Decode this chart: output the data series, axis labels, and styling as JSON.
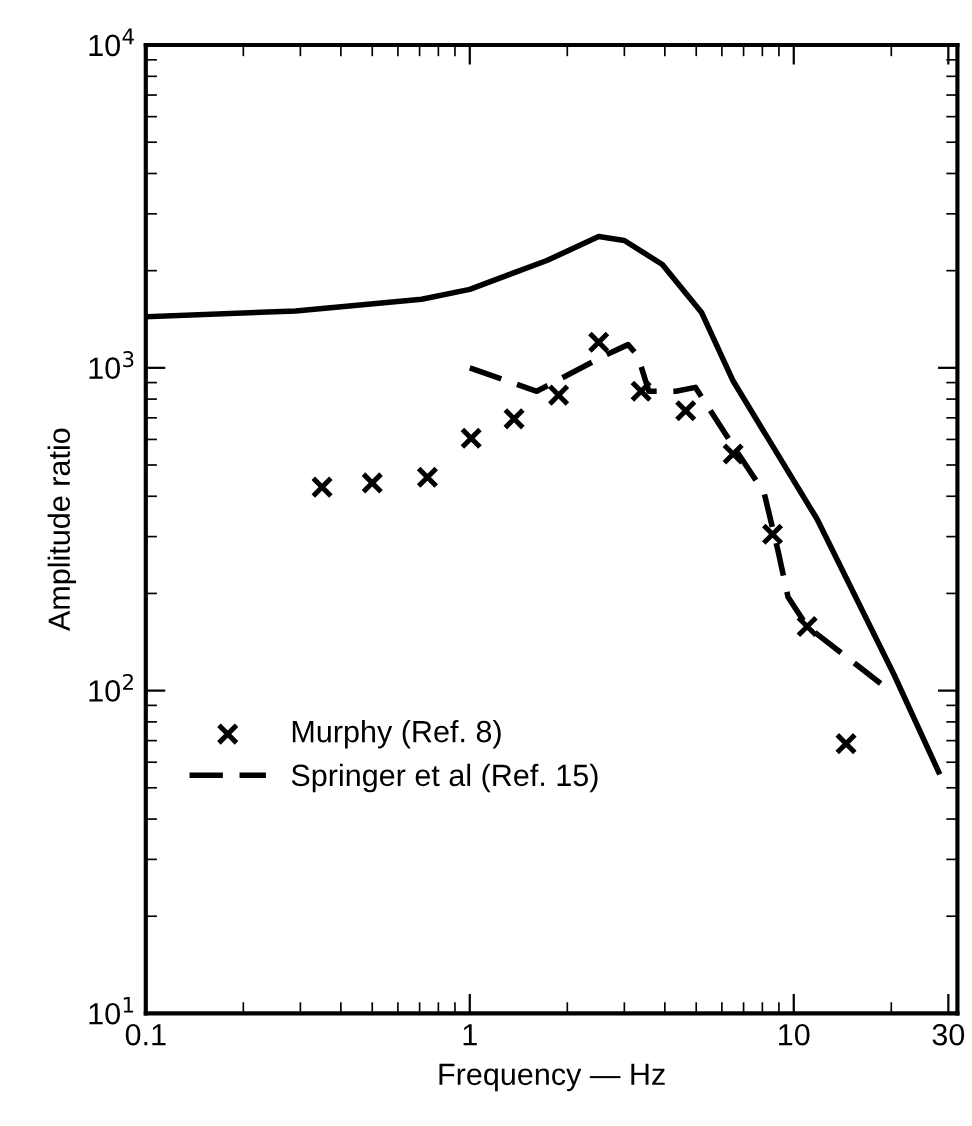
{
  "chart_data": {
    "type": "line",
    "xlabel": "Frequency — Hz",
    "ylabel": "Amplitude ratio",
    "log": "xy",
    "xlim": [
      0.1,
      32
    ],
    "ylim": [
      10,
      10000
    ],
    "xticks": [
      0.1,
      1,
      10,
      30
    ],
    "yticks": [
      {
        "value": 10,
        "label": "10$^{1}$"
      },
      {
        "value": 100,
        "label": "10$^{2}$"
      },
      {
        "value": 1000,
        "label": "10$^{3}$"
      },
      {
        "value": 10000,
        "label": "10$^{4}$"
      }
    ],
    "grid": false,
    "legend": "bottom left",
    "series": [
      {
        "color": "#000000",
        "line_style": "solid",
        "x": [
          0.101,
          0.29,
          0.71,
          1,
          1.73,
          2.5,
          3.0,
          3.93,
          5.2,
          6.5,
          11.8,
          20.4,
          28
        ],
        "values": [
          1440,
          1500,
          1630,
          1750,
          2150,
          2550,
          2480,
          2090,
          1480,
          910,
          340,
          112,
          56
        ]
      },
      {
        "name": "Springer et al (Ref. 15)",
        "color": "#000000",
        "line_style": "dashed",
        "x": [
          1,
          1.61,
          2.6,
          3.08,
          3.3,
          3.57,
          4.33,
          4.97,
          6.5,
          8.1,
          8.95,
          9.6,
          11.0,
          19.8
        ],
        "values": [
          1000,
          846,
          1090,
          1180,
          1090,
          846,
          846,
          870,
          573,
          410,
          270,
          195,
          158,
          100
        ]
      },
      {
        "type": "scatter",
        "name": "Murphy (Ref. 8)",
        "color": "#000000",
        "marker": "cross",
        "x": [
          0.35,
          0.5,
          0.74,
          1.01,
          1.37,
          1.88,
          2.5,
          3.38,
          4.64,
          6.5,
          8.6,
          11,
          14.5
        ],
        "values": [
          427,
          440,
          458,
          605,
          695,
          823,
          1200,
          846,
          736,
          541,
          305,
          158,
          68.5
        ]
      }
    ]
  }
}
